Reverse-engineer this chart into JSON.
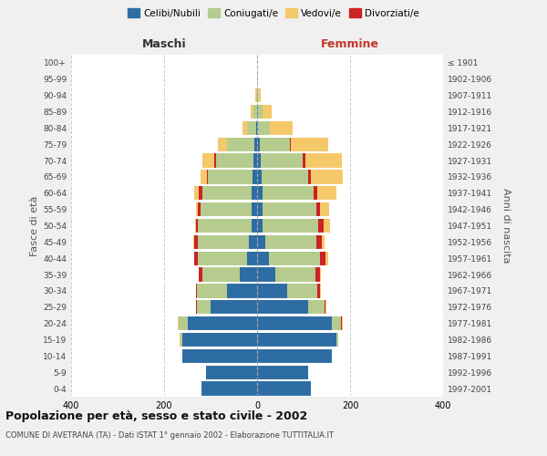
{
  "age_groups": [
    "0-4",
    "5-9",
    "10-14",
    "15-19",
    "20-24",
    "25-29",
    "30-34",
    "35-39",
    "40-44",
    "45-49",
    "50-54",
    "55-59",
    "60-64",
    "65-69",
    "70-74",
    "75-79",
    "80-84",
    "85-89",
    "90-94",
    "95-99",
    "100+"
  ],
  "birth_years": [
    "1997-2001",
    "1992-1996",
    "1987-1991",
    "1982-1986",
    "1977-1981",
    "1972-1976",
    "1967-1971",
    "1962-1966",
    "1957-1961",
    "1952-1956",
    "1947-1951",
    "1942-1946",
    "1937-1941",
    "1932-1936",
    "1927-1931",
    "1922-1926",
    "1917-1921",
    "1912-1916",
    "1907-1911",
    "1902-1906",
    "≤ 1901"
  ],
  "males": {
    "celibi": [
      120,
      110,
      160,
      160,
      150,
      100,
      65,
      38,
      22,
      18,
      12,
      12,
      12,
      10,
      8,
      5,
      2,
      0,
      0,
      0,
      0
    ],
    "coniugati": [
      0,
      0,
      0,
      5,
      18,
      30,
      65,
      80,
      105,
      110,
      115,
      110,
      105,
      95,
      80,
      60,
      20,
      8,
      2,
      0,
      0
    ],
    "vedovi": [
      0,
      0,
      0,
      2,
      2,
      0,
      0,
      0,
      0,
      2,
      2,
      5,
      10,
      15,
      25,
      20,
      10,
      5,
      2,
      0,
      0
    ],
    "divorziati": [
      0,
      0,
      0,
      0,
      0,
      2,
      2,
      8,
      8,
      8,
      5,
      5,
      8,
      2,
      5,
      0,
      0,
      0,
      0,
      0,
      0
    ]
  },
  "females": {
    "nubili": [
      115,
      110,
      160,
      170,
      160,
      110,
      65,
      40,
      25,
      18,
      12,
      12,
      12,
      10,
      8,
      5,
      2,
      2,
      0,
      0,
      0
    ],
    "coniugate": [
      0,
      0,
      0,
      5,
      20,
      35,
      65,
      85,
      110,
      110,
      120,
      115,
      110,
      100,
      90,
      65,
      25,
      10,
      2,
      0,
      0
    ],
    "vedove": [
      0,
      0,
      0,
      0,
      2,
      2,
      2,
      2,
      5,
      5,
      12,
      20,
      40,
      70,
      80,
      80,
      50,
      20,
      5,
      2,
      0
    ],
    "divorziate": [
      0,
      0,
      0,
      0,
      2,
      2,
      5,
      10,
      12,
      12,
      12,
      8,
      8,
      5,
      5,
      2,
      0,
      0,
      0,
      0,
      0
    ]
  },
  "colors": {
    "celibi": "#2e6da4",
    "coniugati": "#b5cc8e",
    "vedovi": "#f5c96a",
    "divorziati": "#cc2222"
  },
  "title": "Popolazione per età, sesso e stato civile - 2002",
  "subtitle": "COMUNE DI AVETRANA (TA) - Dati ISTAT 1° gennaio 2002 - Elaborazione TUTTITALIA.IT",
  "xlabel_left": "Maschi",
  "xlabel_right": "Femmine",
  "ylabel_left": "Fasce di età",
  "ylabel_right": "Anni di nascita",
  "xlim": 400,
  "legend_labels": [
    "Celibi/Nubili",
    "Coniugati/e",
    "Vedovi/e",
    "Divorziati/e"
  ],
  "bg_color": "#f0f0f0",
  "plot_bg_color": "#ffffff"
}
